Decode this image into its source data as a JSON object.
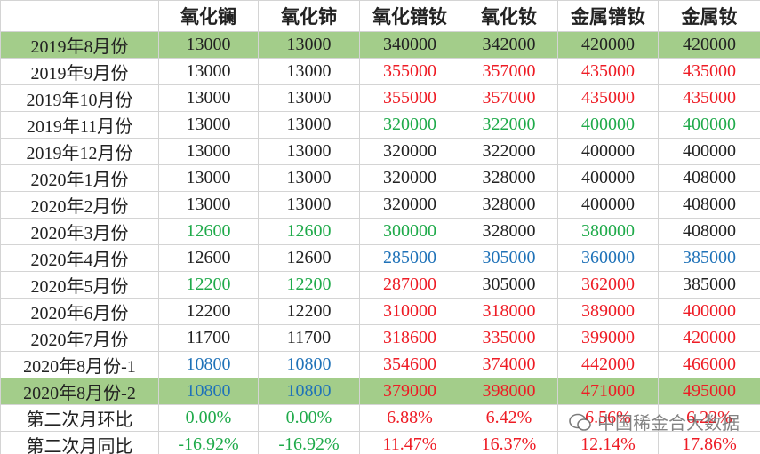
{
  "table": {
    "header": [
      "",
      "氧化镧",
      "氧化铈",
      "氧化镨钕",
      "氧化钕",
      "金属镨钕",
      "金属钕"
    ],
    "rows": [
      {
        "label": "2019年8月份",
        "highlight": true,
        "values": [
          "13000",
          "13000",
          "340000",
          "342000",
          "420000",
          "420000"
        ],
        "colors": [
          "#222",
          "#222",
          "#222",
          "#222",
          "#222",
          "#222"
        ]
      },
      {
        "label": "2019年9月份",
        "highlight": false,
        "values": [
          "13000",
          "13000",
          "355000",
          "357000",
          "435000",
          "435000"
        ],
        "colors": [
          "#222",
          "#222",
          "#ee1c25",
          "#ee1c25",
          "#ee1c25",
          "#ee1c25"
        ]
      },
      {
        "label": "2019年10月份",
        "highlight": false,
        "values": [
          "13000",
          "13000",
          "355000",
          "357000",
          "435000",
          "435000"
        ],
        "colors": [
          "#222",
          "#222",
          "#ee1c25",
          "#ee1c25",
          "#ee1c25",
          "#ee1c25"
        ]
      },
      {
        "label": "2019年11月份",
        "highlight": false,
        "values": [
          "13000",
          "13000",
          "320000",
          "322000",
          "400000",
          "400000"
        ],
        "colors": [
          "#222",
          "#222",
          "#1faa4a",
          "#1faa4a",
          "#1faa4a",
          "#1faa4a"
        ]
      },
      {
        "label": "2019年12月份",
        "highlight": false,
        "values": [
          "13000",
          "13000",
          "320000",
          "322000",
          "400000",
          "400000"
        ],
        "colors": [
          "#222",
          "#222",
          "#222",
          "#222",
          "#222",
          "#222"
        ]
      },
      {
        "label": "2020年1月份",
        "highlight": false,
        "values": [
          "13000",
          "13000",
          "320000",
          "328000",
          "400000",
          "408000"
        ],
        "colors": [
          "#222",
          "#222",
          "#222",
          "#222",
          "#222",
          "#222"
        ]
      },
      {
        "label": "2020年2月份",
        "highlight": false,
        "values": [
          "13000",
          "13000",
          "320000",
          "328000",
          "400000",
          "408000"
        ],
        "colors": [
          "#222",
          "#222",
          "#222",
          "#222",
          "#222",
          "#222"
        ]
      },
      {
        "label": "2020年3月份",
        "highlight": false,
        "values": [
          "12600",
          "12600",
          "300000",
          "328000",
          "380000",
          "408000"
        ],
        "colors": [
          "#1faa4a",
          "#1faa4a",
          "#1faa4a",
          "#222",
          "#1faa4a",
          "#222"
        ]
      },
      {
        "label": "2020年4月份",
        "highlight": false,
        "values": [
          "12600",
          "12600",
          "285000",
          "305000",
          "360000",
          "385000"
        ],
        "colors": [
          "#222",
          "#222",
          "#1f72b8",
          "#1f72b8",
          "#1f72b8",
          "#1f72b8"
        ]
      },
      {
        "label": "2020年5月份",
        "highlight": false,
        "values": [
          "12200",
          "12200",
          "287000",
          "305000",
          "362000",
          "385000"
        ],
        "colors": [
          "#1faa4a",
          "#1faa4a",
          "#ee1c25",
          "#222",
          "#ee1c25",
          "#222"
        ]
      },
      {
        "label": "2020年6月份",
        "highlight": false,
        "values": [
          "12200",
          "12200",
          "310000",
          "318000",
          "389000",
          "400000"
        ],
        "colors": [
          "#222",
          "#222",
          "#ee1c25",
          "#ee1c25",
          "#ee1c25",
          "#ee1c25"
        ]
      },
      {
        "label": "2020年7月份",
        "highlight": false,
        "values": [
          "11700",
          "11700",
          "318600",
          "335000",
          "399000",
          "420000"
        ],
        "colors": [
          "#222",
          "#222",
          "#ee1c25",
          "#ee1c25",
          "#ee1c25",
          "#ee1c25"
        ]
      },
      {
        "label": "2020年8月份-1",
        "highlight": false,
        "values": [
          "10800",
          "10800",
          "354600",
          "374000",
          "442000",
          "466000"
        ],
        "colors": [
          "#1f72b8",
          "#1f72b8",
          "#ee1c25",
          "#ee1c25",
          "#ee1c25",
          "#ee1c25"
        ]
      },
      {
        "label": "2020年8月份-2",
        "highlight": true,
        "values": [
          "10800",
          "10800",
          "379000",
          "398000",
          "471000",
          "495000"
        ],
        "colors": [
          "#1f72b8",
          "#1f72b8",
          "#ee1c25",
          "#ee1c25",
          "#ee1c25",
          "#ee1c25"
        ]
      },
      {
        "label": "第二次月环比",
        "highlight": false,
        "values": [
          "0.00%",
          "0.00%",
          "6.88%",
          "6.42%",
          "6.56%",
          "6.22%"
        ],
        "colors": [
          "#1faa4a",
          "#1faa4a",
          "#ee1c25",
          "#ee1c25",
          "#ee1c25",
          "#ee1c25"
        ]
      },
      {
        "label": "第二次月同比",
        "highlight": false,
        "values": [
          "-16.92%",
          "-16.92%",
          "11.47%",
          "16.37%",
          "12.14%",
          "17.86%"
        ],
        "colors": [
          "#1faa4a",
          "#1faa4a",
          "#ee1c25",
          "#ee1c25",
          "#ee1c25",
          "#ee1c25"
        ]
      }
    ]
  },
  "watermark": "中国稀金合大数据"
}
